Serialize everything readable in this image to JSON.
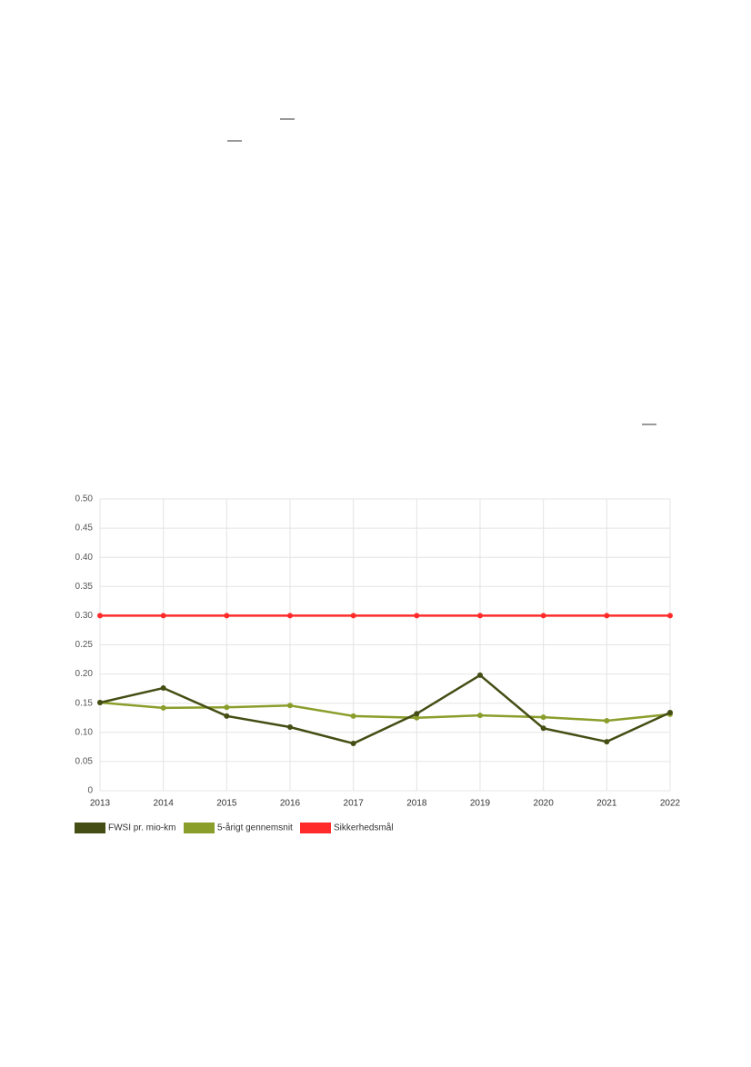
{
  "chart_data": {
    "type": "line",
    "categories": [
      "2013",
      "2014",
      "2015",
      "2016",
      "2017",
      "2018",
      "2019",
      "2020",
      "2021",
      "2022"
    ],
    "series": [
      {
        "name": "FWSI pr. mio-km",
        "color": "#444e14",
        "values": [
          0.151,
          0.176,
          0.128,
          0.109,
          0.081,
          0.132,
          0.198,
          0.107,
          0.084,
          0.134
        ]
      },
      {
        "name": "5-årigt gennemsnit",
        "color": "#8a9e2b",
        "values": [
          0.151,
          0.142,
          0.143,
          0.146,
          0.128,
          0.125,
          0.129,
          0.126,
          0.12,
          0.131
        ]
      },
      {
        "name": "Sikkerhedsmål",
        "color": "#ff2a2a",
        "values": [
          0.3,
          0.3,
          0.3,
          0.3,
          0.3,
          0.3,
          0.3,
          0.3,
          0.3,
          0.3
        ]
      }
    ],
    "ylim": [
      0,
      0.5
    ],
    "yticks": [
      0,
      0.05,
      {
        "value": 0.1,
        "label": "0.10"
      },
      0.15,
      {
        "value": 0.2,
        "label": "0.20"
      },
      0.25,
      {
        "value": 0.3,
        "label": "0.30"
      },
      0.35,
      {
        "value": 0.4,
        "label": "0.40"
      },
      0.45,
      {
        "value": 0.5,
        "label": "0.50"
      }
    ],
    "grid": true
  }
}
